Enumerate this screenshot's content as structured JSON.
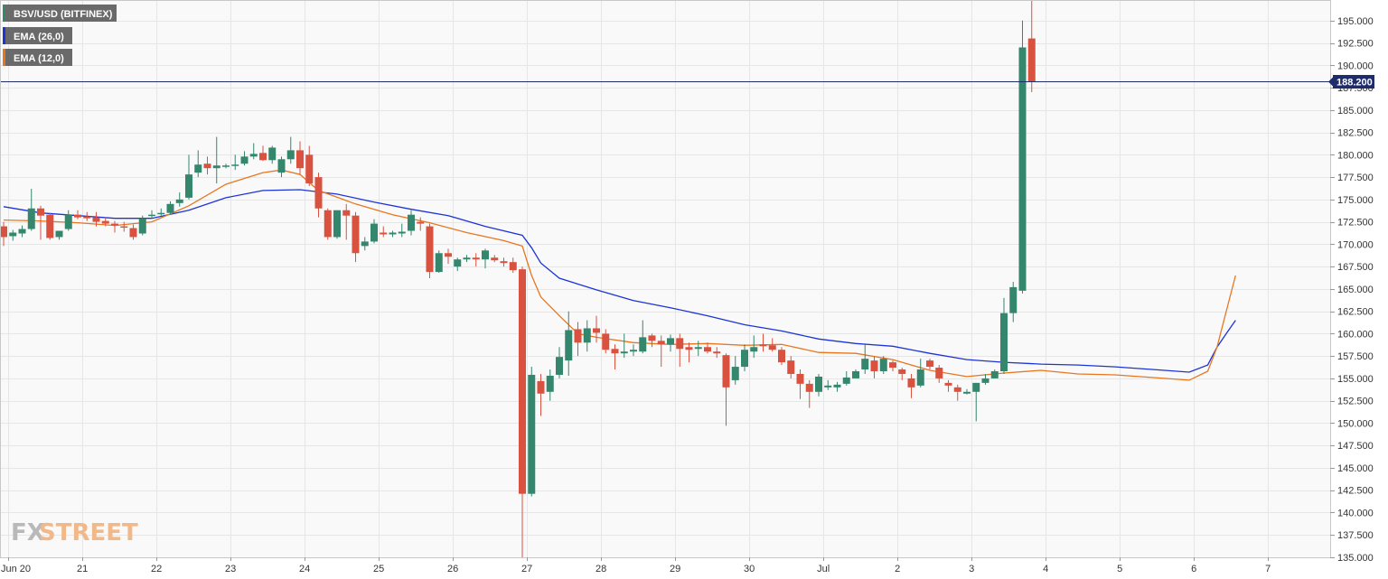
{
  "chart_data": {
    "type": "candlestick",
    "symbol_label": "BSV/USD (BITFINEX)",
    "indicators": [
      {
        "label": "EMA (26,0)",
        "color": "#1c34d6"
      },
      {
        "label": "EMA (12,0)",
        "color": "#e8761f"
      }
    ],
    "colors": {
      "up": "#34866d",
      "down": "#d9513f"
    },
    "ylim": [
      135,
      197.3
    ],
    "y_ticks": [
      135,
      137.5,
      140,
      142.5,
      145,
      147.5,
      150,
      152.5,
      155,
      157.5,
      160,
      162.5,
      165,
      167.5,
      170,
      172.5,
      175,
      177.5,
      180,
      182.5,
      185,
      187.5,
      190,
      192.5,
      195
    ],
    "y_tick_labels": [
      "135.000",
      "137.500",
      "140.000",
      "142.500",
      "145.000",
      "147.500",
      "150.000",
      "152.500",
      "155.000",
      "157.500",
      "160.000",
      "162.500",
      "165.000",
      "167.500",
      "170.000",
      "172.500",
      "175.000",
      "177.500",
      "180.000",
      "182.500",
      "185.000",
      "187.500",
      "190.000",
      "192.500",
      "195.000"
    ],
    "x_labels": [
      {
        "label": "Jun 20",
        "t": 0.5
      },
      {
        "label": "21",
        "t": 8.5
      },
      {
        "label": "22",
        "t": 16.5
      },
      {
        "label": "23",
        "t": 24.5
      },
      {
        "label": "24",
        "t": 32.5
      },
      {
        "label": "25",
        "t": 40.5
      },
      {
        "label": "26",
        "t": 48.5
      },
      {
        "label": "27",
        "t": 56.5
      },
      {
        "label": "28",
        "t": 64.5
      },
      {
        "label": "29",
        "t": 72.5
      },
      {
        "label": "30",
        "t": 80.5
      },
      {
        "label": "Jul",
        "t": 88.5
      },
      {
        "label": "2",
        "t": 96.5
      },
      {
        "label": "3",
        "t": 104.5
      },
      {
        "label": "4",
        "t": 112.5
      },
      {
        "label": "5",
        "t": 120.5
      },
      {
        "label": "6",
        "t": 128.5
      },
      {
        "label": "7",
        "t": 136.5
      }
    ],
    "current_price": 188.2,
    "current_price_label": "188.200",
    "candles": [
      {
        "o": 172.0,
        "h": 172.5,
        "l": 169.8,
        "c": 170.8
      },
      {
        "o": 170.9,
        "h": 171.6,
        "l": 170.4,
        "c": 171.3
      },
      {
        "o": 171.2,
        "h": 172.1,
        "l": 170.8,
        "c": 171.7
      },
      {
        "o": 171.7,
        "h": 176.2,
        "l": 171.5,
        "c": 174.0
      },
      {
        "o": 174.0,
        "h": 174.3,
        "l": 170.5,
        "c": 173.2
      },
      {
        "o": 173.3,
        "h": 173.5,
        "l": 170.5,
        "c": 170.7
      },
      {
        "o": 170.8,
        "h": 171.5,
        "l": 170.5,
        "c": 171.5
      },
      {
        "o": 171.7,
        "h": 173.8,
        "l": 171.5,
        "c": 173.3
      },
      {
        "o": 173.3,
        "h": 173.8,
        "l": 172.8,
        "c": 173.0
      },
      {
        "o": 173.1,
        "h": 173.6,
        "l": 172.6,
        "c": 172.9
      },
      {
        "o": 173.0,
        "h": 173.6,
        "l": 172.0,
        "c": 172.5
      },
      {
        "o": 172.6,
        "h": 173.0,
        "l": 172.0,
        "c": 172.3
      },
      {
        "o": 172.3,
        "h": 172.6,
        "l": 171.3,
        "c": 172.1
      },
      {
        "o": 172.0,
        "h": 172.5,
        "l": 171.4,
        "c": 171.9
      },
      {
        "o": 171.8,
        "h": 172.2,
        "l": 170.5,
        "c": 170.8
      },
      {
        "o": 171.2,
        "h": 173.2,
        "l": 171.0,
        "c": 172.9
      },
      {
        "o": 173.2,
        "h": 173.8,
        "l": 172.9,
        "c": 173.3
      },
      {
        "o": 173.4,
        "h": 174.0,
        "l": 173.2,
        "c": 173.5
      },
      {
        "o": 173.5,
        "h": 174.8,
        "l": 173.3,
        "c": 174.5
      },
      {
        "o": 174.6,
        "h": 175.8,
        "l": 174.2,
        "c": 175.0
      },
      {
        "o": 175.2,
        "h": 180.0,
        "l": 175.0,
        "c": 177.8
      },
      {
        "o": 178.0,
        "h": 180.5,
        "l": 177.5,
        "c": 178.9
      },
      {
        "o": 179.0,
        "h": 179.8,
        "l": 177.8,
        "c": 178.5
      },
      {
        "o": 178.5,
        "h": 182.0,
        "l": 176.8,
        "c": 178.8
      },
      {
        "o": 178.8,
        "h": 179.0,
        "l": 178.5,
        "c": 178.8
      },
      {
        "o": 178.8,
        "h": 180.0,
        "l": 178.3,
        "c": 178.9
      },
      {
        "o": 179.0,
        "h": 180.4,
        "l": 178.8,
        "c": 179.8
      },
      {
        "o": 179.8,
        "h": 181.3,
        "l": 179.5,
        "c": 180.1
      },
      {
        "o": 180.2,
        "h": 181.0,
        "l": 179.3,
        "c": 179.4
      },
      {
        "o": 179.4,
        "h": 181.0,
        "l": 179.0,
        "c": 180.8
      },
      {
        "o": 178.0,
        "h": 179.8,
        "l": 177.5,
        "c": 179.5
      },
      {
        "o": 179.5,
        "h": 182.0,
        "l": 179.0,
        "c": 180.5
      },
      {
        "o": 180.5,
        "h": 181.5,
        "l": 177.8,
        "c": 178.5
      },
      {
        "o": 180.0,
        "h": 181.0,
        "l": 176.5,
        "c": 176.8
      },
      {
        "o": 177.5,
        "h": 178.0,
        "l": 173.0,
        "c": 174.0
      },
      {
        "o": 173.8,
        "h": 174.0,
        "l": 170.5,
        "c": 170.8
      },
      {
        "o": 170.8,
        "h": 173.8,
        "l": 170.6,
        "c": 173.8
      },
      {
        "o": 173.8,
        "h": 174.5,
        "l": 170.5,
        "c": 173.2
      },
      {
        "o": 173.2,
        "h": 173.6,
        "l": 168.0,
        "c": 169.0
      },
      {
        "o": 169.8,
        "h": 170.8,
        "l": 169.3,
        "c": 170.3
      },
      {
        "o": 170.3,
        "h": 172.8,
        "l": 170.1,
        "c": 172.3
      },
      {
        "o": 171.3,
        "h": 172.0,
        "l": 170.8,
        "c": 171.1
      },
      {
        "o": 171.1,
        "h": 171.5,
        "l": 170.8,
        "c": 171.3
      },
      {
        "o": 171.2,
        "h": 172.3,
        "l": 170.8,
        "c": 171.4
      },
      {
        "o": 171.5,
        "h": 173.8,
        "l": 171.0,
        "c": 173.3
      },
      {
        "o": 172.5,
        "h": 173.0,
        "l": 171.5,
        "c": 172.3
      },
      {
        "o": 172.0,
        "h": 172.3,
        "l": 166.2,
        "c": 166.9
      },
      {
        "o": 166.9,
        "h": 169.3,
        "l": 166.8,
        "c": 169.0
      },
      {
        "o": 169.0,
        "h": 169.5,
        "l": 167.8,
        "c": 168.6
      },
      {
        "o": 167.5,
        "h": 168.5,
        "l": 167.0,
        "c": 168.3
      },
      {
        "o": 168.3,
        "h": 168.8,
        "l": 168.0,
        "c": 168.5
      },
      {
        "o": 168.5,
        "h": 169.0,
        "l": 167.5,
        "c": 168.3
      },
      {
        "o": 168.3,
        "h": 169.5,
        "l": 167.3,
        "c": 169.3
      },
      {
        "o": 168.5,
        "h": 168.8,
        "l": 168.0,
        "c": 168.2
      },
      {
        "o": 168.1,
        "h": 168.5,
        "l": 167.5,
        "c": 167.9
      },
      {
        "o": 168.0,
        "h": 168.5,
        "l": 166.8,
        "c": 167.1
      },
      {
        "o": 167.2,
        "h": 167.5,
        "l": 135.0,
        "c": 142.1
      },
      {
        "o": 142.1,
        "h": 156.3,
        "l": 141.8,
        "c": 155.4
      },
      {
        "o": 154.7,
        "h": 155.5,
        "l": 150.8,
        "c": 153.3
      },
      {
        "o": 153.5,
        "h": 156.0,
        "l": 152.5,
        "c": 155.3
      },
      {
        "o": 155.4,
        "h": 158.5,
        "l": 155.0,
        "c": 157.4
      },
      {
        "o": 157.0,
        "h": 162.5,
        "l": 155.3,
        "c": 160.4
      },
      {
        "o": 160.5,
        "h": 161.3,
        "l": 157.5,
        "c": 159.0
      },
      {
        "o": 159.0,
        "h": 161.5,
        "l": 158.0,
        "c": 160.6
      },
      {
        "o": 160.6,
        "h": 162.0,
        "l": 159.0,
        "c": 160.1
      },
      {
        "o": 160.0,
        "h": 160.5,
        "l": 157.8,
        "c": 158.2
      },
      {
        "o": 158.3,
        "h": 158.8,
        "l": 156.0,
        "c": 157.8
      },
      {
        "o": 157.8,
        "h": 160.0,
        "l": 157.3,
        "c": 158.0
      },
      {
        "o": 158.0,
        "h": 158.8,
        "l": 157.5,
        "c": 158.2
      },
      {
        "o": 158.0,
        "h": 161.5,
        "l": 157.8,
        "c": 159.6
      },
      {
        "o": 159.8,
        "h": 160.0,
        "l": 158.5,
        "c": 159.2
      },
      {
        "o": 159.2,
        "h": 159.8,
        "l": 156.3,
        "c": 158.8
      },
      {
        "o": 158.8,
        "h": 159.9,
        "l": 158.0,
        "c": 159.5
      },
      {
        "o": 159.5,
        "h": 160.0,
        "l": 156.3,
        "c": 158.3
      },
      {
        "o": 158.5,
        "h": 159.0,
        "l": 156.8,
        "c": 158.2
      },
      {
        "o": 158.3,
        "h": 159.2,
        "l": 157.5,
        "c": 158.5
      },
      {
        "o": 158.5,
        "h": 159.0,
        "l": 157.8,
        "c": 158.0
      },
      {
        "o": 158.0,
        "h": 158.5,
        "l": 157.3,
        "c": 157.8
      },
      {
        "o": 157.6,
        "h": 157.8,
        "l": 149.7,
        "c": 154.0
      },
      {
        "o": 154.8,
        "h": 157.5,
        "l": 154.3,
        "c": 156.3
      },
      {
        "o": 156.3,
        "h": 158.8,
        "l": 155.8,
        "c": 158.2
      },
      {
        "o": 158.0,
        "h": 159.8,
        "l": 157.3,
        "c": 158.5
      },
      {
        "o": 158.8,
        "h": 160.0,
        "l": 158.0,
        "c": 158.6
      },
      {
        "o": 158.7,
        "h": 159.5,
        "l": 158.0,
        "c": 158.2
      },
      {
        "o": 158.2,
        "h": 158.5,
        "l": 156.5,
        "c": 156.8
      },
      {
        "o": 157.0,
        "h": 157.5,
        "l": 155.0,
        "c": 155.5
      },
      {
        "o": 155.5,
        "h": 156.0,
        "l": 152.7,
        "c": 154.4
      },
      {
        "o": 154.4,
        "h": 154.8,
        "l": 151.7,
        "c": 153.5
      },
      {
        "o": 153.5,
        "h": 155.5,
        "l": 153.0,
        "c": 155.2
      },
      {
        "o": 154.0,
        "h": 154.8,
        "l": 153.7,
        "c": 154.2
      },
      {
        "o": 154.0,
        "h": 154.6,
        "l": 153.5,
        "c": 154.3
      },
      {
        "o": 154.4,
        "h": 155.8,
        "l": 154.2,
        "c": 155.1
      },
      {
        "o": 155.0,
        "h": 156.0,
        "l": 155.0,
        "c": 155.8
      },
      {
        "o": 156.0,
        "h": 158.8,
        "l": 155.5,
        "c": 157.2
      },
      {
        "o": 157.0,
        "h": 157.5,
        "l": 155.0,
        "c": 155.8
      },
      {
        "o": 155.8,
        "h": 157.5,
        "l": 155.5,
        "c": 157.2
      },
      {
        "o": 156.8,
        "h": 157.0,
        "l": 155.8,
        "c": 156.2
      },
      {
        "o": 156.0,
        "h": 156.2,
        "l": 154.8,
        "c": 155.5
      },
      {
        "o": 155.0,
        "h": 155.5,
        "l": 152.8,
        "c": 154.0
      },
      {
        "o": 154.2,
        "h": 157.2,
        "l": 154.0,
        "c": 156.0
      },
      {
        "o": 157.0,
        "h": 157.2,
        "l": 156.0,
        "c": 156.3
      },
      {
        "o": 156.2,
        "h": 156.5,
        "l": 154.5,
        "c": 155.0
      },
      {
        "o": 154.5,
        "h": 154.8,
        "l": 153.5,
        "c": 154.2
      },
      {
        "o": 154.0,
        "h": 154.3,
        "l": 152.5,
        "c": 153.5
      },
      {
        "o": 153.3,
        "h": 153.8,
        "l": 153.2,
        "c": 153.5
      },
      {
        "o": 153.5,
        "h": 154.5,
        "l": 150.2,
        "c": 154.5
      },
      {
        "o": 154.5,
        "h": 155.5,
        "l": 154.3,
        "c": 155.0
      },
      {
        "o": 155.0,
        "h": 156.0,
        "l": 155.0,
        "c": 155.8
      },
      {
        "o": 155.8,
        "h": 164.0,
        "l": 155.5,
        "c": 162.3
      },
      {
        "o": 162.3,
        "h": 165.8,
        "l": 161.3,
        "c": 165.2
      },
      {
        "o": 164.8,
        "h": 195.0,
        "l": 164.5,
        "c": 192.0
      },
      {
        "o": 193.0,
        "h": 197.2,
        "l": 187.0,
        "c": 188.2
      }
    ],
    "ema26": [
      {
        "t": 0,
        "v": 174.2
      },
      {
        "t": 4,
        "v": 173.5
      },
      {
        "t": 8,
        "v": 173.2
      },
      {
        "t": 12,
        "v": 172.9
      },
      {
        "t": 16,
        "v": 172.9
      },
      {
        "t": 20,
        "v": 173.8
      },
      {
        "t": 24,
        "v": 175.2
      },
      {
        "t": 28,
        "v": 176.0
      },
      {
        "t": 32,
        "v": 176.1
      },
      {
        "t": 36,
        "v": 175.6
      },
      {
        "t": 40,
        "v": 174.7
      },
      {
        "t": 44,
        "v": 173.9
      },
      {
        "t": 48,
        "v": 173.2
      },
      {
        "t": 52,
        "v": 172.0
      },
      {
        "t": 56,
        "v": 171.0
      },
      {
        "t": 57,
        "v": 169.6
      },
      {
        "t": 58,
        "v": 167.9
      },
      {
        "t": 60,
        "v": 166.2
      },
      {
        "t": 64,
        "v": 164.9
      },
      {
        "t": 68,
        "v": 163.7
      },
      {
        "t": 72,
        "v": 162.9
      },
      {
        "t": 76,
        "v": 162.0
      },
      {
        "t": 80,
        "v": 161.0
      },
      {
        "t": 84,
        "v": 160.3
      },
      {
        "t": 88,
        "v": 159.4
      },
      {
        "t": 92,
        "v": 158.9
      },
      {
        "t": 96,
        "v": 158.6
      },
      {
        "t": 100,
        "v": 157.8
      },
      {
        "t": 104,
        "v": 157.1
      },
      {
        "t": 108,
        "v": 156.8
      },
      {
        "t": 112,
        "v": 156.6
      },
      {
        "t": 116,
        "v": 156.5
      },
      {
        "t": 120,
        "v": 156.3
      },
      {
        "t": 124,
        "v": 156.0
      },
      {
        "t": 128,
        "v": 155.7
      },
      {
        "t": 130,
        "v": 156.5
      },
      {
        "t": 131,
        "v": 158.5
      },
      {
        "t": 132,
        "v": 160.0
      },
      {
        "t": 133,
        "v": 161.5
      }
    ],
    "ema12": [
      {
        "t": 0,
        "v": 172.7
      },
      {
        "t": 4,
        "v": 172.6
      },
      {
        "t": 8,
        "v": 172.4
      },
      {
        "t": 12,
        "v": 172.1
      },
      {
        "t": 16,
        "v": 172.5
      },
      {
        "t": 20,
        "v": 174.3
      },
      {
        "t": 24,
        "v": 176.7
      },
      {
        "t": 28,
        "v": 178.0
      },
      {
        "t": 30,
        "v": 178.3
      },
      {
        "t": 32,
        "v": 177.8
      },
      {
        "t": 34,
        "v": 176.0
      },
      {
        "t": 38,
        "v": 174.5
      },
      {
        "t": 42,
        "v": 173.3
      },
      {
        "t": 46,
        "v": 172.4
      },
      {
        "t": 50,
        "v": 171.3
      },
      {
        "t": 54,
        "v": 170.4
      },
      {
        "t": 56,
        "v": 169.8
      },
      {
        "t": 57,
        "v": 166.5
      },
      {
        "t": 58,
        "v": 164.1
      },
      {
        "t": 60,
        "v": 162.0
      },
      {
        "t": 62,
        "v": 160.0
      },
      {
        "t": 64,
        "v": 159.6
      },
      {
        "t": 68,
        "v": 159.0
      },
      {
        "t": 72,
        "v": 158.8
      },
      {
        "t": 76,
        "v": 158.9
      },
      {
        "t": 80,
        "v": 158.7
      },
      {
        "t": 84,
        "v": 158.8
      },
      {
        "t": 88,
        "v": 157.9
      },
      {
        "t": 92,
        "v": 157.8
      },
      {
        "t": 96,
        "v": 157.1
      },
      {
        "t": 100,
        "v": 155.9
      },
      {
        "t": 104,
        "v": 155.2
      },
      {
        "t": 108,
        "v": 155.6
      },
      {
        "t": 112,
        "v": 155.9
      },
      {
        "t": 116,
        "v": 155.5
      },
      {
        "t": 120,
        "v": 155.4
      },
      {
        "t": 124,
        "v": 155.1
      },
      {
        "t": 128,
        "v": 154.8
      },
      {
        "t": 130,
        "v": 155.8
      },
      {
        "t": 131,
        "v": 158.5
      },
      {
        "t": 132,
        "v": 162.5
      },
      {
        "t": 133,
        "v": 166.5
      }
    ]
  },
  "watermark": {
    "left": "FX",
    "right": "STREET"
  }
}
